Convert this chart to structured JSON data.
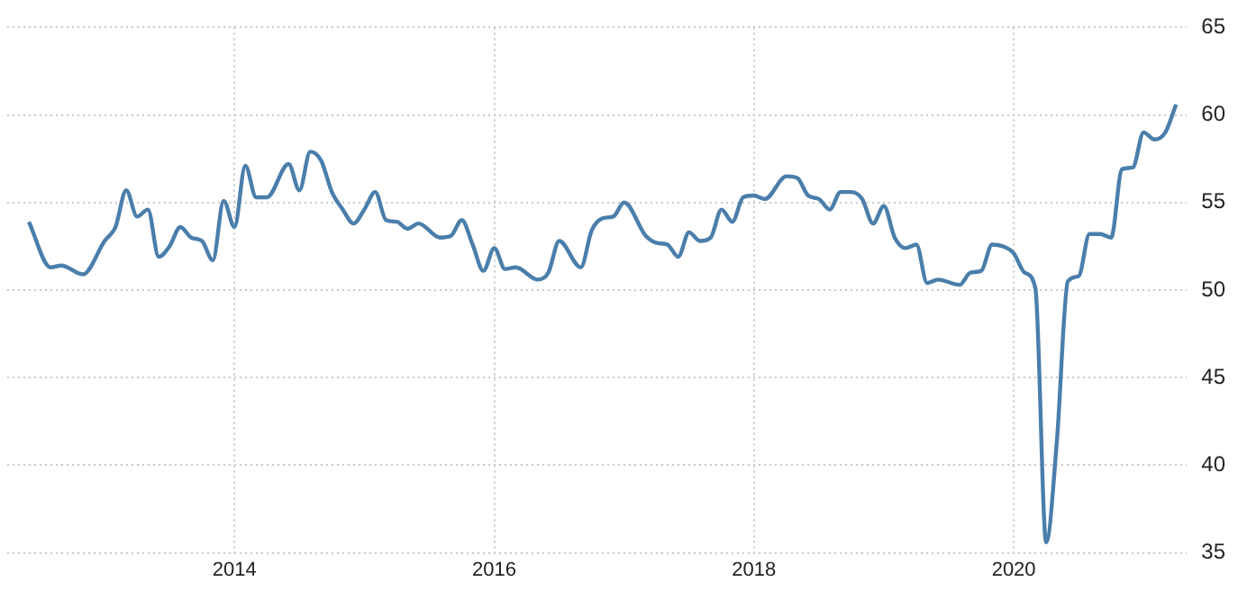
{
  "chart_data": {
    "type": "line",
    "x": [
      "2012-06",
      "2012-08",
      "2012-09",
      "2012-11",
      "2013-01",
      "2013-02",
      "2013-03",
      "2013-04",
      "2013-05",
      "2013-06",
      "2013-07",
      "2013-08",
      "2013-09",
      "2013-10",
      "2013-11",
      "2013-12",
      "2014-01",
      "2014-02",
      "2014-03",
      "2014-04",
      "2014-06",
      "2014-07",
      "2014-08",
      "2014-09",
      "2014-10",
      "2014-11",
      "2014-12",
      "2015-01",
      "2015-02",
      "2015-03",
      "2015-04",
      "2015-05",
      "2015-06",
      "2015-08",
      "2015-09",
      "2015-10",
      "2015-11",
      "2015-12",
      "2016-01",
      "2016-02",
      "2016-03",
      "2016-05",
      "2016-06",
      "2016-07",
      "2016-09",
      "2016-10",
      "2016-11",
      "2016-12",
      "2017-01",
      "2017-03",
      "2017-04",
      "2017-05",
      "2017-06",
      "2017-07",
      "2017-08",
      "2017-09",
      "2017-10",
      "2017-11",
      "2017-12",
      "2018-01",
      "2018-02",
      "2018-04",
      "2018-05",
      "2018-06",
      "2018-07",
      "2018-08",
      "2018-09",
      "2018-10",
      "2018-11",
      "2018-12",
      "2019-01",
      "2019-02",
      "2019-03",
      "2019-04",
      "2019-05",
      "2019-06",
      "2019-08",
      "2019-09",
      "2019-10",
      "2019-11",
      "2019-12",
      "2020-01",
      "2020-02",
      "2020-03",
      "2020-04",
      "2020-05",
      "2020-06",
      "2020-07",
      "2020-08",
      "2020-09",
      "2020-10",
      "2020-11",
      "2020-12",
      "2021-01",
      "2021-02",
      "2021-03",
      "2021-04"
    ],
    "series": [
      {
        "color": "#4a7eab",
        "values": [
          53.9,
          51.3,
          51.4,
          50.9,
          52.8,
          53.6,
          55.7,
          54.2,
          54.6,
          51.9,
          52.5,
          53.6,
          53.0,
          52.8,
          51.7,
          55.1,
          53.6,
          57.1,
          55.3,
          55.3,
          57.2,
          55.7,
          57.9,
          57.4,
          55.6,
          54.6,
          53.8,
          54.6,
          55.6,
          54.0,
          53.9,
          53.5,
          53.8,
          53.0,
          53.1,
          54.0,
          52.6,
          51.1,
          52.4,
          51.2,
          51.3,
          50.6,
          51.0,
          52.8,
          51.3,
          53.4,
          54.1,
          54.2,
          55.0,
          53.1,
          52.7,
          52.6,
          51.9,
          53.3,
          52.8,
          53.0,
          54.6,
          53.9,
          55.3,
          55.4,
          55.2,
          56.5,
          56.4,
          55.4,
          55.2,
          54.6,
          55.6,
          55.6,
          55.2,
          53.8,
          54.8,
          53.0,
          52.4,
          52.6,
          50.4,
          50.6,
          50.3,
          51.0,
          51.1,
          52.6,
          52.5,
          52.1,
          51.0,
          50.1,
          35.6,
          41.5,
          50.5,
          50.8,
          53.2,
          53.2,
          53.0,
          56.9,
          57.0,
          59.0,
          58.6,
          59.0,
          60.6
        ]
      }
    ],
    "xlim": [
      "2012-04",
      "2021-05"
    ],
    "xticks": [
      "2014",
      "2016",
      "2018",
      "2020"
    ],
    "ylim": [
      35,
      65
    ],
    "yticks": [
      35,
      40,
      45,
      50,
      55,
      60,
      65
    ],
    "grid": true,
    "legend": false,
    "marker": "none",
    "line_style": "solid"
  }
}
